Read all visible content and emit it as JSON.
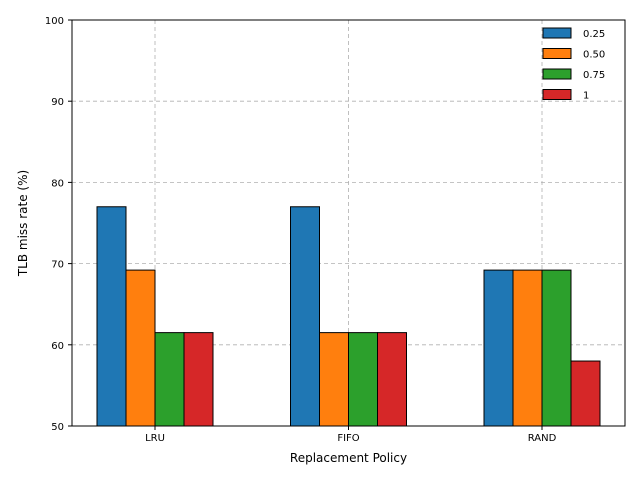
{
  "chart_data": {
    "type": "bar",
    "categories": [
      "LRU",
      "FIFO",
      "RAND"
    ],
    "series": [
      {
        "name": "0.25",
        "values": [
          77.0,
          77.0,
          69.2
        ],
        "color": "#1f77b4"
      },
      {
        "name": "0.50",
        "values": [
          69.2,
          61.5,
          69.2
        ],
        "color": "#ff7f0e"
      },
      {
        "name": "0.75",
        "values": [
          61.5,
          61.5,
          69.2
        ],
        "color": "#2ca02c"
      },
      {
        "name": "1",
        "values": [
          61.5,
          61.5,
          58.0
        ],
        "color": "#d62728"
      }
    ],
    "title": "",
    "xlabel": "Replacement Policy",
    "ylabel": "TLB miss rate (%)",
    "ylim": [
      50,
      100
    ],
    "yticks": [
      50,
      60,
      70,
      80,
      90,
      100
    ],
    "grid": true,
    "legend_position": "top-right"
  }
}
